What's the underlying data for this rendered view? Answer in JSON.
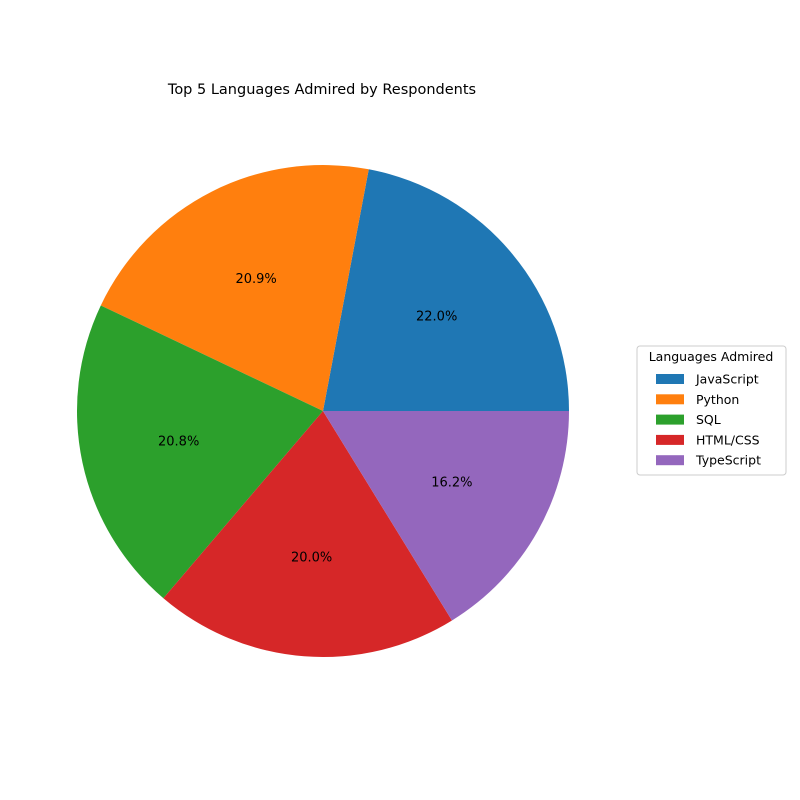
{
  "chart_data": {
    "type": "pie",
    "title": "Top 5 Languages Admired by Respondents",
    "legend": {
      "title": "Languages Admired",
      "placement": "right"
    },
    "slices": [
      {
        "label": "JavaScript",
        "percent": 22.0,
        "display": "22.0%",
        "color": "#1f77b4"
      },
      {
        "label": "Python",
        "percent": 20.9,
        "display": "20.9%",
        "color": "#ff7f0e"
      },
      {
        "label": "SQL",
        "percent": 20.8,
        "display": "20.8%",
        "color": "#2ca02c"
      },
      {
        "label": "HTML/CSS",
        "percent": 20.0,
        "display": "20.0%",
        "color": "#d62728"
      },
      {
        "label": "TypeScript",
        "percent": 16.2,
        "display": "16.2%",
        "color": "#9467bd"
      }
    ],
    "start_angle_deg": 0,
    "direction": "counterclockwise"
  }
}
